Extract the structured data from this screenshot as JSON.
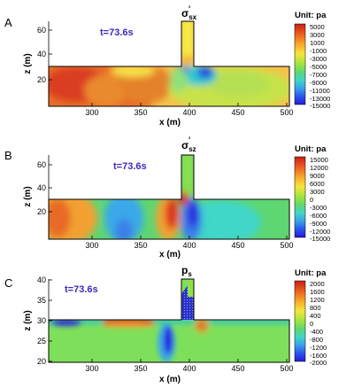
{
  "panels": [
    {
      "letter": "A",
      "time": "t=73.6s",
      "variable": "σ'sx",
      "var_main": "σ",
      "var_sub": "sx",
      "unit": "Unit: pa",
      "colorbar_labels": [
        "5000",
        "3000",
        "1000",
        "-1000",
        "-3000",
        "-5000",
        "-7000",
        "-9000",
        "-11000",
        "-13000",
        "-15000"
      ],
      "xticks": [
        "300",
        "350",
        "400",
        "450",
        "500"
      ],
      "yticks": [
        "60",
        "40",
        "20"
      ],
      "xlabel": "x (m)",
      "ylabel": "z (m)"
    },
    {
      "letter": "B",
      "time": "t=73.6s",
      "variable": "σ'sz",
      "var_main": "σ",
      "var_sub": "sz",
      "unit": "Unit: pa",
      "colorbar_labels": [
        "15000",
        "12000",
        "9000",
        "6000",
        "3000",
        "0",
        "-3000",
        "-6000",
        "-9000",
        "-12000",
        "-15000"
      ],
      "xticks": [
        "300",
        "350",
        "400",
        "450",
        "500"
      ],
      "yticks": [
        "60",
        "40",
        "20"
      ],
      "xlabel": "x (m)",
      "ylabel": "z (m)"
    },
    {
      "letter": "C",
      "time": "t=73.6s",
      "variable": "ps",
      "var_main": "p",
      "var_sub": "s",
      "unit": "Unit: pa",
      "colorbar_labels": [
        "2000",
        "1600",
        "1200",
        "800",
        "400",
        "0",
        "-400",
        "-800",
        "-1200",
        "-1600",
        "-2000"
      ],
      "xticks": [
        "300",
        "350",
        "400",
        "450",
        "500"
      ],
      "yticks": [
        "40",
        "35",
        "30",
        "25",
        "20"
      ],
      "xlabel": "x (m)",
      "ylabel": "z (m)"
    }
  ]
}
